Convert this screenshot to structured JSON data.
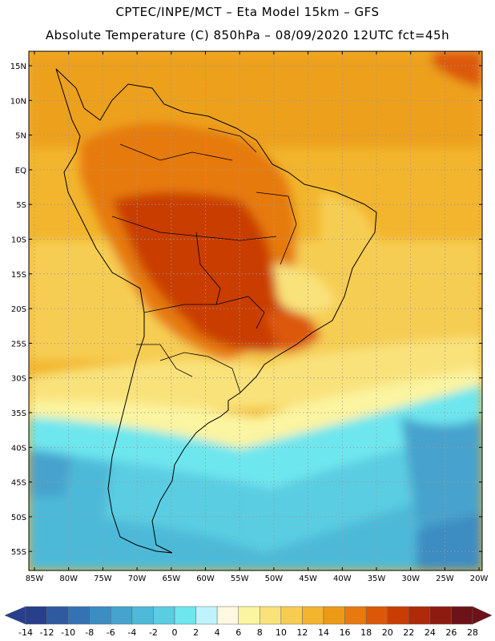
{
  "header": {
    "line1": "CPTEC/INPE/MCT –  Eta Model 15km – GFS",
    "line2": "Absolute Temperature (C) 850hPa – 08/09/2020 12UTC fct=45h"
  },
  "axes": {
    "lat_labels": [
      "15N",
      "10N",
      "5N",
      "EQ",
      "5S",
      "10S",
      "15S",
      "20S",
      "25S",
      "30S",
      "35S",
      "40S",
      "45S",
      "50S",
      "55S"
    ],
    "lon_labels": [
      "85W",
      "80W",
      "75W",
      "70W",
      "65W",
      "60W",
      "55W",
      "50W",
      "45W",
      "40W",
      "35W",
      "30W",
      "25W",
      "20W"
    ]
  },
  "colorbar": {
    "labels": [
      "-14",
      "-12",
      "-10",
      "-8",
      "-6",
      "-4",
      "-2",
      "0",
      "2",
      "4",
      "6",
      "8",
      "10",
      "12",
      "14",
      "16",
      "18",
      "20",
      "22",
      "24",
      "26",
      "28"
    ],
    "colors": [
      "#283f8c",
      "#2f5aa0",
      "#3473b3",
      "#3d8cc2",
      "#46a3cd",
      "#4eb9d8",
      "#5acde2",
      "#6ee6ee",
      "#bff3fb",
      "#fff8e0",
      "#fbf4a0",
      "#f9e27a",
      "#f6cd52",
      "#f2b52d",
      "#ec9a16",
      "#e67a10",
      "#dc5808",
      "#c93d05",
      "#ae2a08",
      "#8e1b10",
      "#6d1218"
    ]
  }
}
